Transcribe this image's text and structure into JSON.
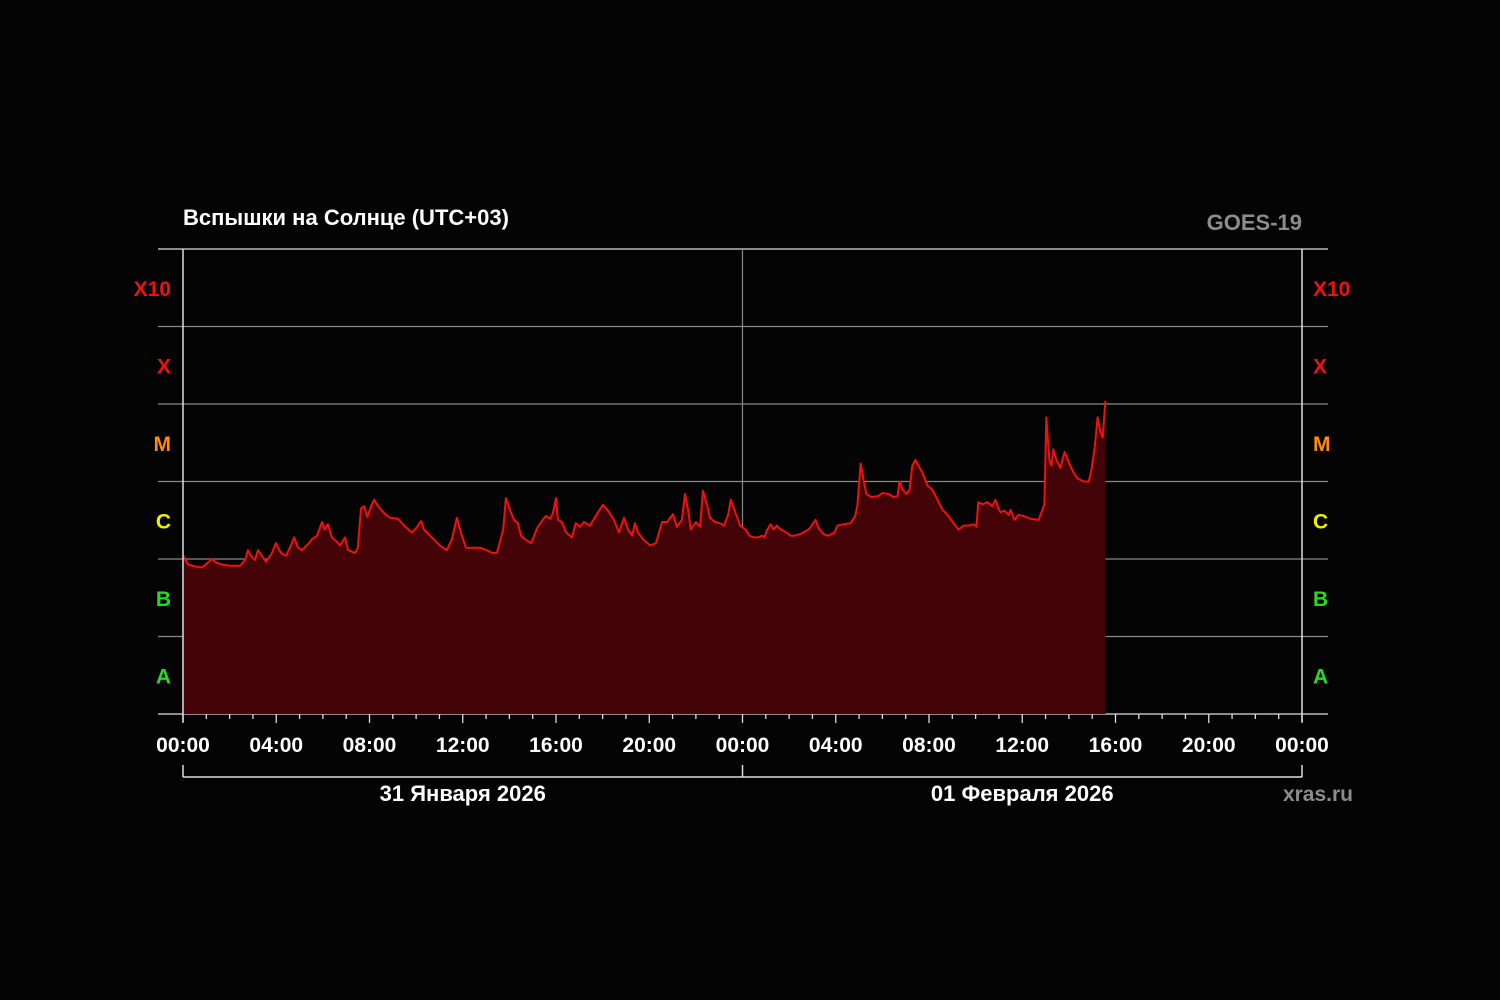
{
  "chart_data": {
    "type": "area",
    "title": "Вспышки на Солнце (UTC+03)",
    "source_label": "GOES-19",
    "credit": "xras.ru",
    "y_scale": "log",
    "y_classes": [
      {
        "label": "A",
        "color": "#22dd22"
      },
      {
        "label": "B",
        "color": "#22dd22"
      },
      {
        "label": "C",
        "color": "#eeee00"
      },
      {
        "label": "M",
        "color": "#ff8c00"
      },
      {
        "label": "X",
        "color": "#ee1111"
      },
      {
        "label": "X10",
        "color": "#ee1111"
      }
    ],
    "xlim": [
      "2026-01-31T00:00",
      "2026-02-02T00:00"
    ],
    "x_tick_labels": [
      "00:00",
      "04:00",
      "08:00",
      "12:00",
      "16:00",
      "20:00",
      "00:00",
      "04:00",
      "08:00",
      "12:00",
      "16:00",
      "20:00",
      "00:00"
    ],
    "date_labels": [
      "31 Января 2026",
      "01 Февраля 2026"
    ],
    "grid": true,
    "line_color": "#ee1111",
    "fill_color": "#440306",
    "series": [
      {
        "points": [
          [
            "2026-01-31T00:00",
            "C1.1"
          ],
          [
            "2026-01-31T00:13",
            "B8.5"
          ],
          [
            "2026-01-31T00:31",
            "B8.0"
          ],
          [
            "2026-01-31T00:49",
            "B7.8"
          ],
          [
            "2026-01-31T01:02",
            "B8.8"
          ],
          [
            "2026-01-31T01:15",
            "C1.0"
          ],
          [
            "2026-01-31T01:25",
            "B9.0"
          ],
          [
            "2026-01-31T01:40",
            "B8.5"
          ],
          [
            "2026-01-31T02:01",
            "B8.2"
          ],
          [
            "2026-01-31T02:27",
            "B8.2"
          ],
          [
            "2026-01-31T02:40",
            "B9.7"
          ],
          [
            "2026-01-31T02:47",
            "C1.3"
          ],
          [
            "2026-01-31T02:55",
            "C1.1"
          ],
          [
            "2026-01-31T03:05",
            "B9.7"
          ],
          [
            "2026-01-31T03:13",
            "C1.3"
          ],
          [
            "2026-01-31T03:23",
            "C1.1"
          ],
          [
            "2026-01-31T03:34",
            "B9.2"
          ],
          [
            "2026-01-31T03:49",
            "C1.2"
          ],
          [
            "2026-01-31T03:59",
            "C1.6"
          ],
          [
            "2026-01-31T04:12",
            "C1.2"
          ],
          [
            "2026-01-31T04:25",
            "C1.1"
          ],
          [
            "2026-01-31T04:38",
            "C1.5"
          ],
          [
            "2026-01-31T04:46",
            "C1.9"
          ],
          [
            "2026-01-31T04:56",
            "C1.4"
          ],
          [
            "2026-01-31T05:06",
            "C1.3"
          ],
          [
            "2026-01-31T05:24",
            "C1.6"
          ],
          [
            "2026-01-31T05:32",
            "C1.8"
          ],
          [
            "2026-01-31T05:45",
            "C2.0"
          ],
          [
            "2026-01-31T05:58",
            "C3.0"
          ],
          [
            "2026-01-31T06:05",
            "C2.4"
          ],
          [
            "2026-01-31T06:13",
            "C2.8"
          ],
          [
            "2026-01-31T06:23",
            "C1.9"
          ],
          [
            "2026-01-31T06:34",
            "C1.7"
          ],
          [
            "2026-01-31T06:44",
            "C1.5"
          ],
          [
            "2026-01-31T06:57",
            "C1.9"
          ],
          [
            "2026-01-31T07:05",
            "C1.3"
          ],
          [
            "2026-01-31T07:23",
            "C1.2"
          ],
          [
            "2026-01-31T07:30",
            "C1.4"
          ],
          [
            "2026-01-31T07:38",
            "C4.5"
          ],
          [
            "2026-01-31T07:46",
            "C4.8"
          ],
          [
            "2026-01-31T07:54",
            "C3.5"
          ],
          [
            "2026-01-31T08:04",
            "C4.8"
          ],
          [
            "2026-01-31T08:12",
            "C5.8"
          ],
          [
            "2026-01-31T08:22",
            "C4.8"
          ],
          [
            "2026-01-31T08:40",
            "C3.8"
          ],
          [
            "2026-01-31T08:53",
            "C3.4"
          ],
          [
            "2026-01-31T09:13",
            "C3.3"
          ],
          [
            "2026-01-31T09:29",
            "C2.7"
          ],
          [
            "2026-01-31T09:49",
            "C2.2"
          ],
          [
            "2026-01-31T10:00",
            "C2.5"
          ],
          [
            "2026-01-31T10:13",
            "C3.1"
          ],
          [
            "2026-01-31T10:20",
            "C2.4"
          ],
          [
            "2026-01-31T10:36",
            "C2.0"
          ],
          [
            "2026-01-31T11:01",
            "C1.5"
          ],
          [
            "2026-01-31T11:19",
            "C1.3"
          ],
          [
            "2026-01-31T11:32",
            "C1.8"
          ],
          [
            "2026-01-31T11:45",
            "C3.4"
          ],
          [
            "2026-01-31T11:55",
            "C2.2"
          ],
          [
            "2026-01-31T12:08",
            "C1.4"
          ],
          [
            "2026-01-31T12:24",
            "C1.4"
          ],
          [
            "2026-01-31T12:44",
            "C1.4"
          ],
          [
            "2026-01-31T13:02",
            "C1.3"
          ],
          [
            "2026-01-31T13:15",
            "C1.2"
          ],
          [
            "2026-01-31T13:28",
            "C1.2"
          ],
          [
            "2026-01-31T13:44",
            "C2.4"
          ],
          [
            "2026-01-31T13:51",
            "C6.1"
          ],
          [
            "2026-01-31T14:02",
            "C4.2"
          ],
          [
            "2026-01-31T14:12",
            "C3.2"
          ],
          [
            "2026-01-31T14:22",
            "C2.9"
          ],
          [
            "2026-01-31T14:30",
            "C2.0"
          ],
          [
            "2026-01-31T14:40",
            "C1.8"
          ],
          [
            "2026-01-31T14:56",
            "C1.6"
          ],
          [
            "2026-01-31T15:11",
            "C2.5"
          ],
          [
            "2026-01-31T15:24",
            "C3.1"
          ],
          [
            "2026-01-31T15:34",
            "C3.6"
          ],
          [
            "2026-01-31T15:45",
            "C3.3"
          ],
          [
            "2026-01-31T15:52",
            "C3.9"
          ],
          [
            "2026-01-31T16:00",
            "C6.1"
          ],
          [
            "2026-01-31T16:05",
            "C3.2"
          ],
          [
            "2026-01-31T16:15",
            "C3.0"
          ],
          [
            "2026-01-31T16:26",
            "C2.2"
          ],
          [
            "2026-01-31T16:41",
            "C1.9"
          ],
          [
            "2026-01-31T16:51",
            "C2.9"
          ],
          [
            "2026-01-31T17:02",
            "C2.6"
          ],
          [
            "2026-01-31T17:12",
            "C3.0"
          ],
          [
            "2026-01-31T17:27",
            "C2.7"
          ],
          [
            "2026-01-31T17:38",
            "C3.3"
          ],
          [
            "2026-01-31T17:48",
            "C4.0"
          ],
          [
            "2026-01-31T18:01",
            "C5.0"
          ],
          [
            "2026-01-31T18:14",
            "C4.2"
          ],
          [
            "2026-01-31T18:29",
            "C3.2"
          ],
          [
            "2026-01-31T18:42",
            "C2.2"
          ],
          [
            "2026-01-31T18:55",
            "C3.4"
          ],
          [
            "2026-01-31T19:05",
            "C2.4"
          ],
          [
            "2026-01-31T19:16",
            "C2.0"
          ],
          [
            "2026-01-31T19:23",
            "C2.9"
          ],
          [
            "2026-01-31T19:31",
            "C2.2"
          ],
          [
            "2026-01-31T19:44",
            "C1.8"
          ],
          [
            "2026-01-31T20:02",
            "C1.5"
          ],
          [
            "2026-01-31T20:17",
            "C1.6"
          ],
          [
            "2026-01-31T20:33",
            "C3.0"
          ],
          [
            "2026-01-31T20:46",
            "C3.0"
          ],
          [
            "2026-01-31T21:01",
            "C3.8"
          ],
          [
            "2026-01-31T21:11",
            "C2.6"
          ],
          [
            "2026-01-31T21:24",
            "C3.2"
          ],
          [
            "2026-01-31T21:32",
            "C6.9"
          ],
          [
            "2026-01-31T21:40",
            "C4.3"
          ],
          [
            "2026-01-31T21:47",
            "C2.4"
          ],
          [
            "2026-01-31T22:00",
            "C3.0"
          ],
          [
            "2026-01-31T22:11",
            "C2.6"
          ],
          [
            "2026-01-31T22:18",
            "C7.6"
          ],
          [
            "2026-01-31T22:29",
            "C5.0"
          ],
          [
            "2026-01-31T22:36",
            "C3.4"
          ],
          [
            "2026-01-31T22:49",
            "C3.0"
          ],
          [
            "2026-01-31T23:02",
            "C2.9"
          ],
          [
            "2026-01-31T23:12",
            "C2.7"
          ],
          [
            "2026-01-31T23:23",
            "C3.7"
          ],
          [
            "2026-01-31T23:30",
            "C5.8"
          ],
          [
            "2026-01-31T23:43",
            "C3.8"
          ],
          [
            "2026-01-31T23:54",
            "C2.7"
          ],
          [
            "2026-02-01T00:08",
            "C2.4"
          ],
          [
            "2026-02-01T00:18",
            "C2.0"
          ],
          [
            "2026-02-01T00:28",
            "C1.9"
          ],
          [
            "2026-02-01T00:39",
            "C1.9"
          ],
          [
            "2026-02-01T00:51",
            "C2.0"
          ],
          [
            "2026-02-01T00:57",
            "C1.9"
          ],
          [
            "2026-02-01T01:02",
            "C2.3"
          ],
          [
            "2026-02-01T01:12",
            "C2.8"
          ],
          [
            "2026-02-01T01:20",
            "C2.4"
          ],
          [
            "2026-02-01T01:28",
            "C2.7"
          ],
          [
            "2026-02-01T01:38",
            "C2.4"
          ],
          [
            "2026-02-01T01:53",
            "C2.2"
          ],
          [
            "2026-02-01T02:04",
            "C2.0"
          ],
          [
            "2026-02-01T02:14",
            "C2.0"
          ],
          [
            "2026-02-01T02:29",
            "C2.1"
          ],
          [
            "2026-02-01T02:50",
            "C2.4"
          ],
          [
            "2026-02-01T02:58",
            "C2.7"
          ],
          [
            "2026-02-01T03:08",
            "C3.2"
          ],
          [
            "2026-02-01T03:16",
            "C2.5"
          ],
          [
            "2026-02-01T03:28",
            "C2.1"
          ],
          [
            "2026-02-01T03:41",
            "C2.0"
          ],
          [
            "2026-02-01T03:57",
            "C2.2"
          ],
          [
            "2026-02-01T04:04",
            "C2.7"
          ],
          [
            "2026-02-01T04:20",
            "C2.8"
          ],
          [
            "2026-02-01T04:38",
            "C2.9"
          ],
          [
            "2026-02-01T04:50",
            "C3.6"
          ],
          [
            "2026-02-01T04:56",
            "C5.0"
          ],
          [
            "2026-02-01T05:04",
            "M1.7"
          ],
          [
            "2026-02-01T05:11",
            "M1.1"
          ],
          [
            "2026-02-01T05:19",
            "C6.9"
          ],
          [
            "2026-02-01T05:32",
            "C6.3"
          ],
          [
            "2026-02-01T05:50",
            "C6.5"
          ],
          [
            "2026-02-01T06:00",
            "C7.1"
          ],
          [
            "2026-02-01T06:16",
            "C6.9"
          ],
          [
            "2026-02-01T06:29",
            "C6.3"
          ],
          [
            "2026-02-01T06:39",
            "C6.5"
          ],
          [
            "2026-02-01T06:44",
            "M1.0"
          ],
          [
            "2026-02-01T06:52",
            "C7.9"
          ],
          [
            "2026-02-01T07:02",
            "C6.9"
          ],
          [
            "2026-02-01T07:10",
            "C7.8"
          ],
          [
            "2026-02-01T07:17",
            "M1.6"
          ],
          [
            "2026-02-01T07:25",
            "M1.9"
          ],
          [
            "2026-02-01T07:33",
            "M1.6"
          ],
          [
            "2026-02-01T07:43",
            "M1.3"
          ],
          [
            "2026-02-01T07:56",
            "C8.9"
          ],
          [
            "2026-02-01T08:09",
            "C7.8"
          ],
          [
            "2026-02-01T08:22",
            "C5.8"
          ],
          [
            "2026-02-01T08:35",
            "C4.3"
          ],
          [
            "2026-02-01T08:48",
            "C3.7"
          ],
          [
            "2026-02-01T09:03",
            "C2.9"
          ],
          [
            "2026-02-01T09:16",
            "C2.4"
          ],
          [
            "2026-02-01T09:29",
            "C2.7"
          ],
          [
            "2026-02-01T09:42",
            "C2.7"
          ],
          [
            "2026-02-01T09:55",
            "C2.8"
          ],
          [
            "2026-02-01T10:02",
            "C2.6"
          ],
          [
            "2026-02-01T10:07",
            "C5.4"
          ],
          [
            "2026-02-01T10:18",
            "C5.1"
          ],
          [
            "2026-02-01T10:30",
            "C5.4"
          ],
          [
            "2026-02-01T10:43",
            "C4.8"
          ],
          [
            "2026-02-01T10:51",
            "C5.8"
          ],
          [
            "2026-02-01T10:59",
            "C4.5"
          ],
          [
            "2026-02-01T11:04",
            "C4.0"
          ],
          [
            "2026-02-01T11:14",
            "C4.2"
          ],
          [
            "2026-02-01T11:25",
            "C3.7"
          ],
          [
            "2026-02-01T11:30",
            "C4.3"
          ],
          [
            "2026-02-01T11:40",
            "C3.2"
          ],
          [
            "2026-02-01T11:50",
            "C3.7"
          ],
          [
            "2026-02-01T12:03",
            "C3.6"
          ],
          [
            "2026-02-01T12:21",
            "C3.3"
          ],
          [
            "2026-02-01T12:42",
            "C3.2"
          ],
          [
            "2026-02-01T12:52",
            "C4.3"
          ],
          [
            "2026-02-01T12:57",
            "C5.1"
          ],
          [
            "2026-02-01T13:02",
            "M6.7"
          ],
          [
            "2026-02-01T13:10",
            "M1.9"
          ],
          [
            "2026-02-01T13:15",
            "M1.6"
          ],
          [
            "2026-02-01T13:20",
            "M2.6"
          ],
          [
            "2026-02-01T13:28",
            "M1.9"
          ],
          [
            "2026-02-01T13:38",
            "M1.5"
          ],
          [
            "2026-02-01T13:49",
            "M2.4"
          ],
          [
            "2026-02-01T13:59",
            "M1.8"
          ],
          [
            "2026-02-01T14:12",
            "M1.3"
          ],
          [
            "2026-02-01T14:22",
            "M1.1"
          ],
          [
            "2026-02-01T14:38",
            "M1.0"
          ],
          [
            "2026-02-01T14:51",
            "M1.0"
          ],
          [
            "2026-02-01T14:58",
            "M1.4"
          ],
          [
            "2026-02-01T15:06",
            "M2.6"
          ],
          [
            "2026-02-01T15:14",
            "M6.7"
          ],
          [
            "2026-02-01T15:21",
            "M4.4"
          ],
          [
            "2026-02-01T15:27",
            "M3.7"
          ],
          [
            "2026-02-01T15:34",
            "X1.1"
          ]
        ]
      }
    ]
  }
}
